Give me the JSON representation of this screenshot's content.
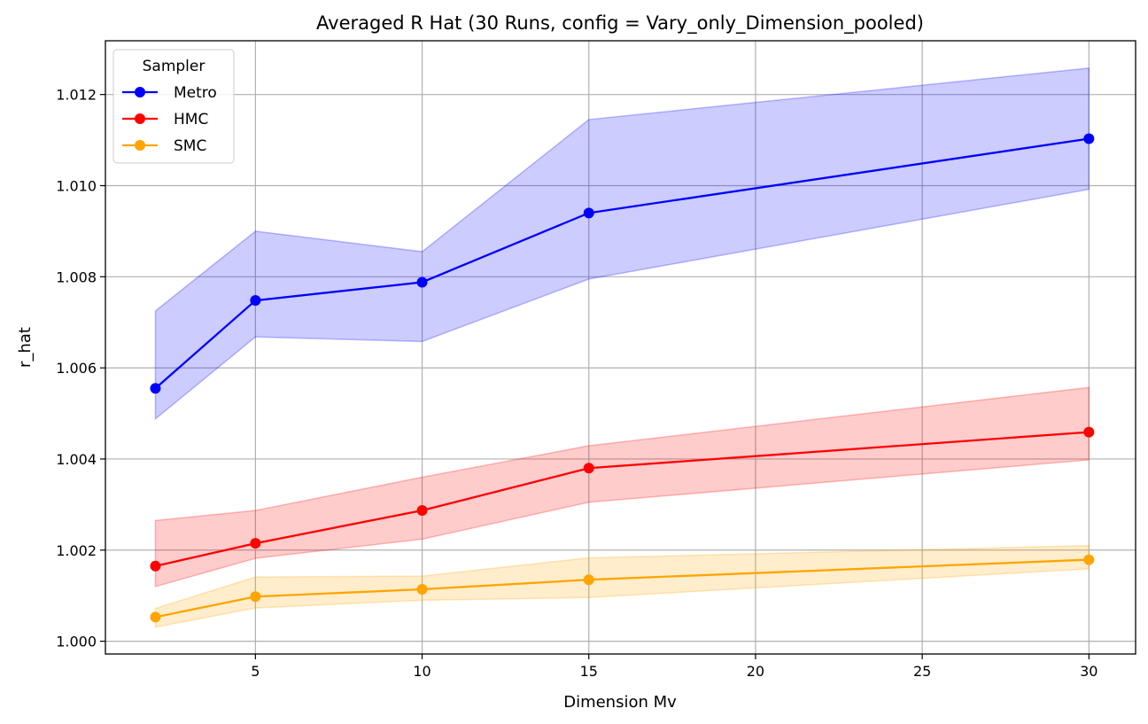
{
  "chart_data": {
    "type": "line",
    "title": "Averaged R Hat (30 Runs, config = Vary_only_Dimension_pooled)",
    "xlabel": "Dimension Mv",
    "ylabel": "r_hat",
    "x": [
      2,
      5,
      10,
      15,
      30
    ],
    "xlim": [
      0.5,
      31.4
    ],
    "ylim": [
      0.99972,
      1.01318
    ],
    "xticks": [
      5,
      10,
      15,
      20,
      25,
      30
    ],
    "yticks": [
      1.0,
      1.002,
      1.004,
      1.006,
      1.008,
      1.01,
      1.012
    ],
    "ytick_labels": [
      "1.000",
      "1.002",
      "1.004",
      "1.006",
      "1.008",
      "1.010",
      "1.012"
    ],
    "grid": true,
    "legend": {
      "title": "Sampler",
      "placement": "top-left"
    },
    "series": [
      {
        "name": "Metro",
        "color": "#0000ff",
        "band_color": "#0000ff",
        "values": [
          1.00555,
          1.00748,
          1.00788,
          1.0094,
          1.01103
        ],
        "lower": [
          1.00488,
          1.00668,
          1.00658,
          1.00795,
          1.00992
        ],
        "upper": [
          1.00725,
          1.009,
          1.00855,
          1.01145,
          1.01258
        ]
      },
      {
        "name": "HMC",
        "color": "#ff0000",
        "band_color": "#ff0000",
        "values": [
          1.00165,
          1.00215,
          1.00287,
          1.0038,
          1.00459
        ],
        "lower": [
          1.0012,
          1.00182,
          1.00224,
          1.00305,
          1.00398
        ],
        "upper": [
          1.00265,
          1.00287,
          1.0036,
          1.00429,
          1.00557
        ]
      },
      {
        "name": "SMC",
        "color": "#ffa500",
        "band_color": "#ffa500",
        "values": [
          1.00053,
          1.00098,
          1.00114,
          1.00135,
          1.00179
        ],
        "lower": [
          1.00031,
          1.00073,
          1.0009,
          1.00096,
          1.00159
        ],
        "upper": [
          1.00072,
          1.00141,
          1.00143,
          1.00183,
          1.0021
        ]
      }
    ]
  }
}
